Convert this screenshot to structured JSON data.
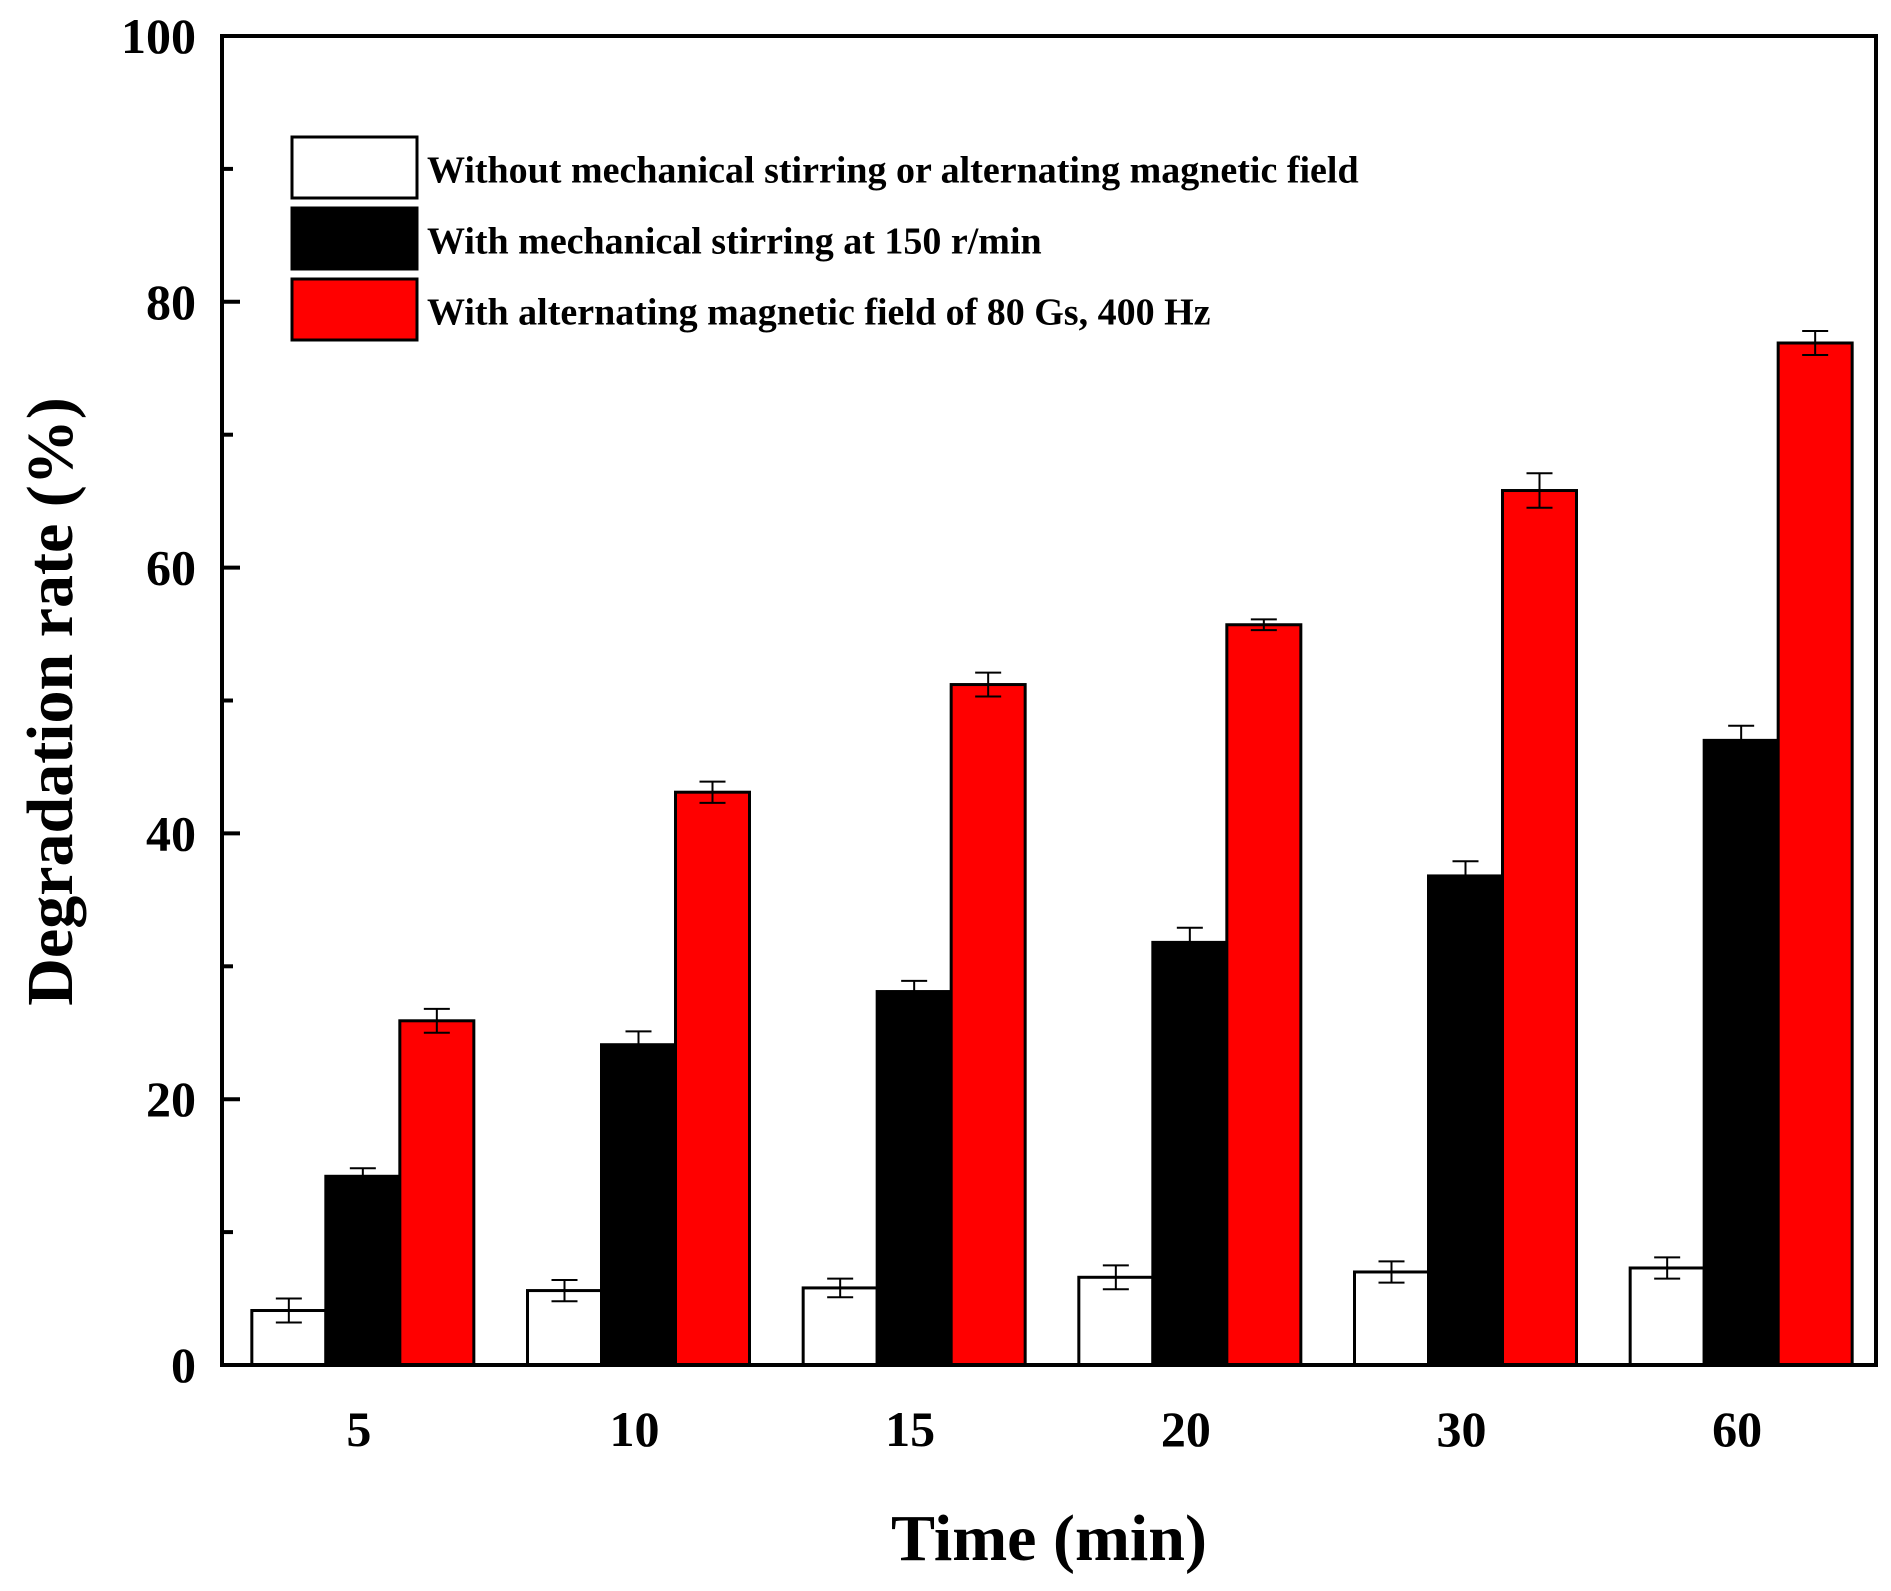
{
  "chart_data": {
    "type": "bar",
    "title": "",
    "xlabel": "Time (min)",
    "ylabel": "Degradation rate (%)",
    "ylim": [
      0,
      100
    ],
    "yticks": [
      0,
      20,
      40,
      60,
      80,
      100
    ],
    "grid": false,
    "legend_position": "top-left",
    "categories": [
      "5",
      "10",
      "15",
      "20",
      "30",
      "60"
    ],
    "series": [
      {
        "name": "Without mechanical stirring or alternating magnetic field",
        "color": "#ffffff",
        "values": [
          4.1,
          5.6,
          5.8,
          6.6,
          7.0,
          7.3
        ],
        "errors": [
          0.9,
          0.8,
          0.7,
          0.9,
          0.8,
          0.8
        ]
      },
      {
        "name": "With mechanical stirring at 150 r/min",
        "color": "#000000",
        "values": [
          14.2,
          24.1,
          28.1,
          31.8,
          36.8,
          47.0
        ],
        "errors": [
          0.6,
          1.0,
          0.8,
          1.1,
          1.1,
          1.1
        ]
      },
      {
        "name": "With alternating magnetic field of  80 Gs, 400 Hz",
        "color": "#ff0000",
        "values": [
          25.9,
          43.1,
          51.2,
          55.7,
          65.8,
          76.9
        ],
        "errors": [
          0.9,
          0.8,
          0.9,
          0.4,
          1.3,
          0.9
        ]
      }
    ]
  }
}
